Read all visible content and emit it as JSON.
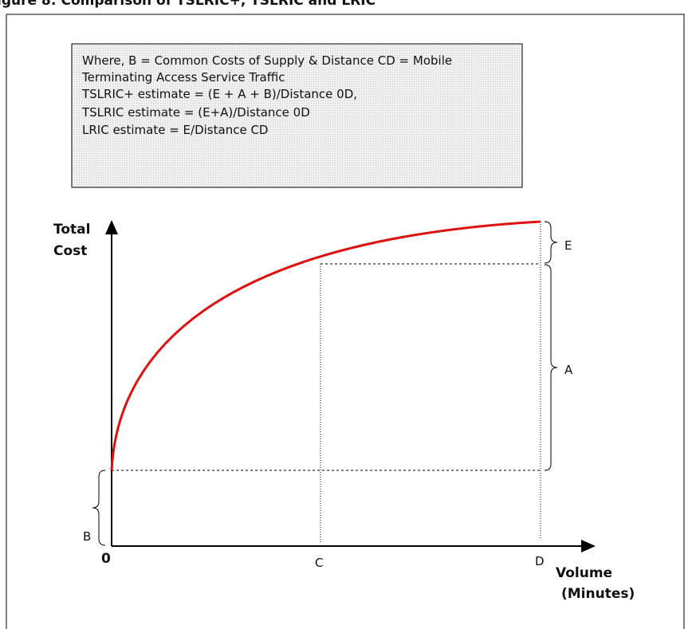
{
  "title": "igure 8: Comparison of TSLRIC+, TSLRIC and LRIC",
  "note": {
    "lines": [
      "Where, B = Common Costs of Supply & Distance CD = Mobile",
      "Terminating Access Service Traffic",
      "TSLRIC+ estimate = (E + A + B)/Distance 0D,",
      "TSLRIC estimate = (E+A)/Distance 0D",
      "LRIC estimate = E/Distance CD"
    ]
  },
  "axes": {
    "y_label": [
      "Total",
      "Cost"
    ],
    "x_label": [
      "Volume",
      "(Minutes)"
    ],
    "origin": "0"
  },
  "labels": {
    "E": "E",
    "A": "A",
    "B": "B",
    "C": "C",
    "D": "D"
  }
}
